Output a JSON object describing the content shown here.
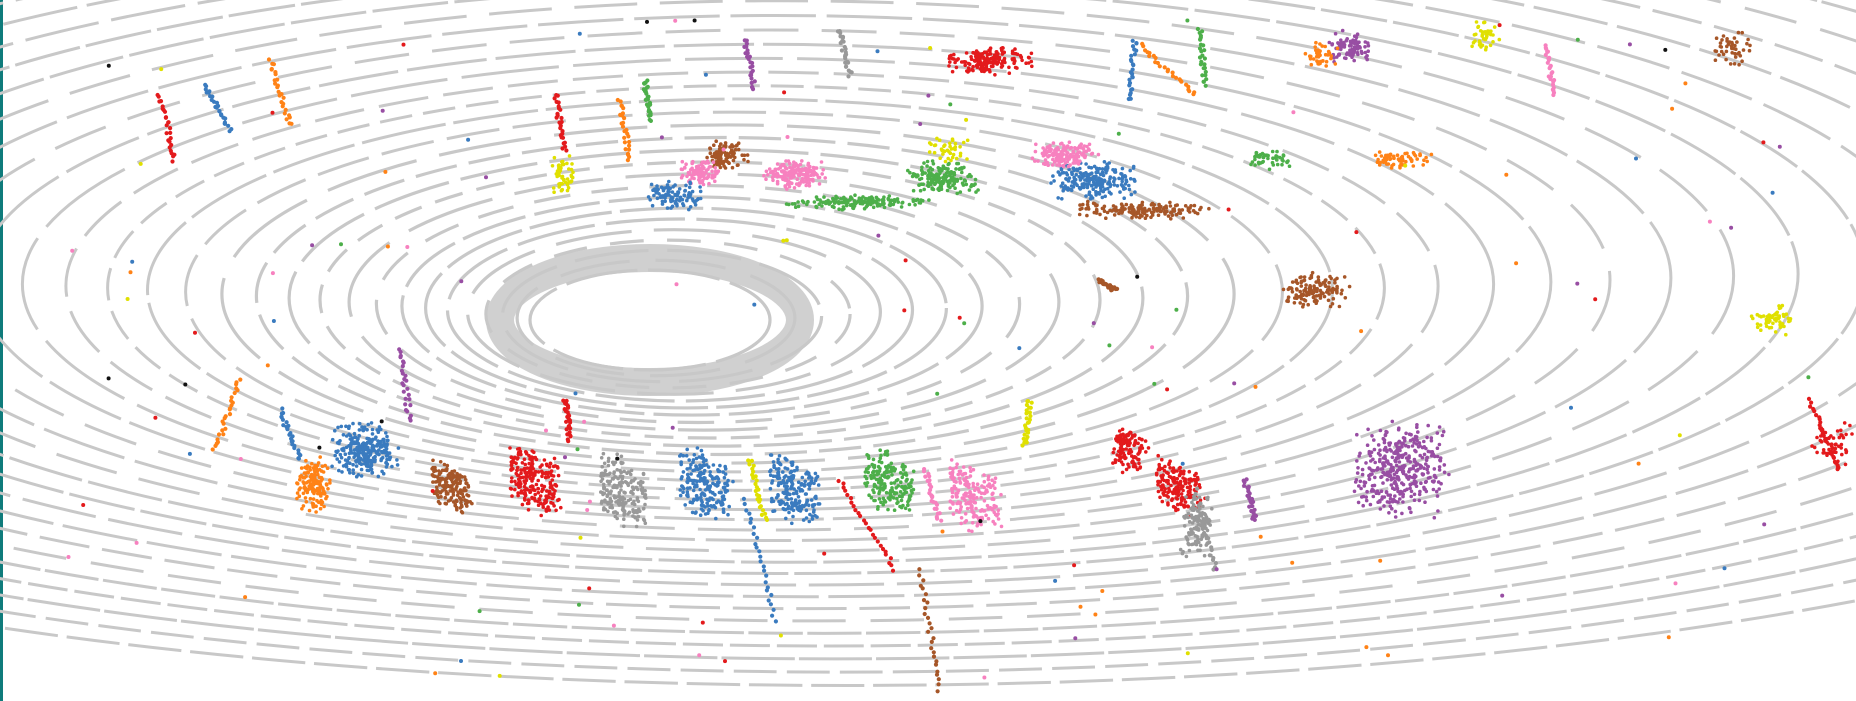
{
  "image": {
    "kind": "lidar-point-cloud-segmentation",
    "background_color": "#ffffff",
    "ground_color": "#c8c8c8",
    "edge_bar_color": "#0f7b7b"
  },
  "palette": {
    "blue": "#3a7bbf",
    "orange": "#ff8216",
    "red": "#e31a1c",
    "brown": "#a65628",
    "pink": "#f781bf",
    "green": "#4daf4a",
    "purple": "#984ea3",
    "yellow": "#e0e000",
    "gray": "#999999",
    "black": "#111111"
  },
  "labels": []
}
